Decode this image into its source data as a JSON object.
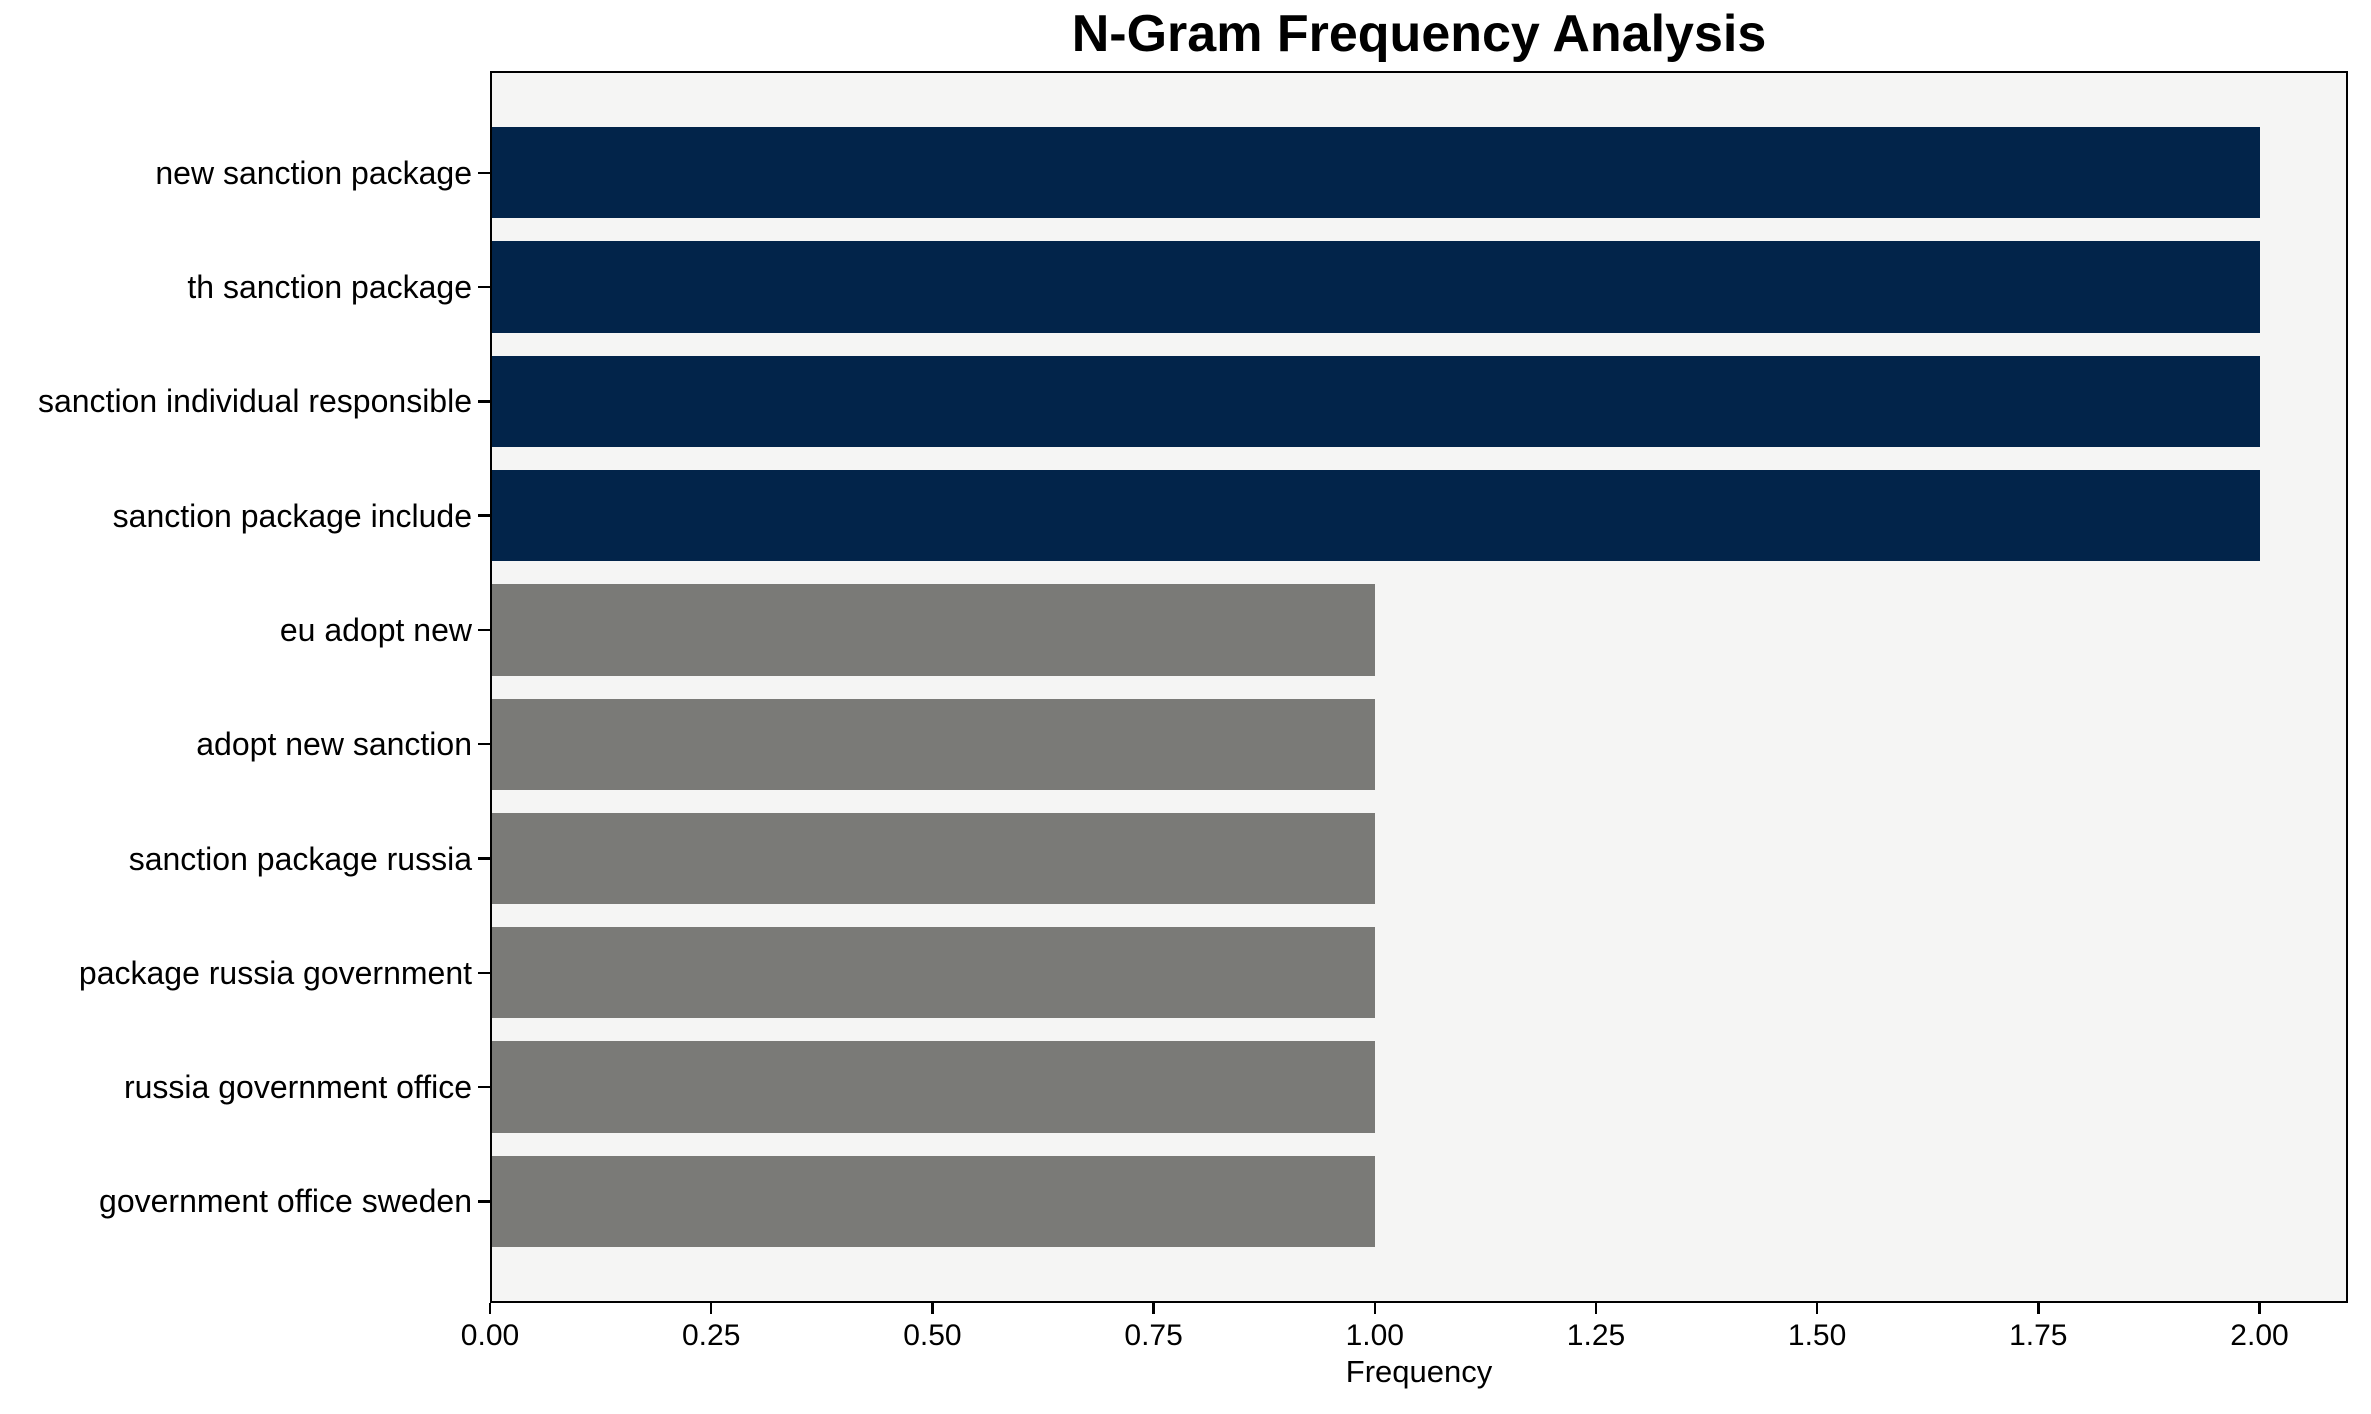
{
  "chart_data": {
    "type": "bar",
    "orientation": "horizontal",
    "title": "N-Gram Frequency Analysis",
    "xlabel": "Frequency",
    "ylabel": "",
    "categories": [
      "new sanction package",
      "th sanction package",
      "sanction individual responsible",
      "sanction package include",
      "eu adopt new",
      "adopt new sanction",
      "sanction package russia",
      "package russia government",
      "russia government office",
      "government office sweden"
    ],
    "values": [
      2,
      2,
      2,
      2,
      1,
      1,
      1,
      1,
      1,
      1
    ],
    "bar_colors": [
      "#02244a",
      "#02244a",
      "#02244a",
      "#02244a",
      "#7a7a77",
      "#7a7a77",
      "#7a7a77",
      "#7a7a77",
      "#7a7a77",
      "#7a7a77"
    ],
    "xticks": [
      {
        "value": 0.0,
        "label": "0.00"
      },
      {
        "value": 0.25,
        "label": "0.25"
      },
      {
        "value": 0.5,
        "label": "0.50"
      },
      {
        "value": 0.75,
        "label": "0.75"
      },
      {
        "value": 1.0,
        "label": "1.00"
      },
      {
        "value": 1.25,
        "label": "1.25"
      },
      {
        "value": 1.5,
        "label": "1.50"
      },
      {
        "value": 1.75,
        "label": "1.75"
      },
      {
        "value": 2.0,
        "label": "2.00"
      }
    ],
    "xlim": [
      0,
      2.1
    ],
    "grid": false,
    "legend": null,
    "colors": {
      "high_freq_bar": "#02244a",
      "low_freq_bar": "#7a7a77",
      "plot_background": "#f5f5f4",
      "figure_background": "#ffffff",
      "axis_and_text": "#000000"
    }
  }
}
